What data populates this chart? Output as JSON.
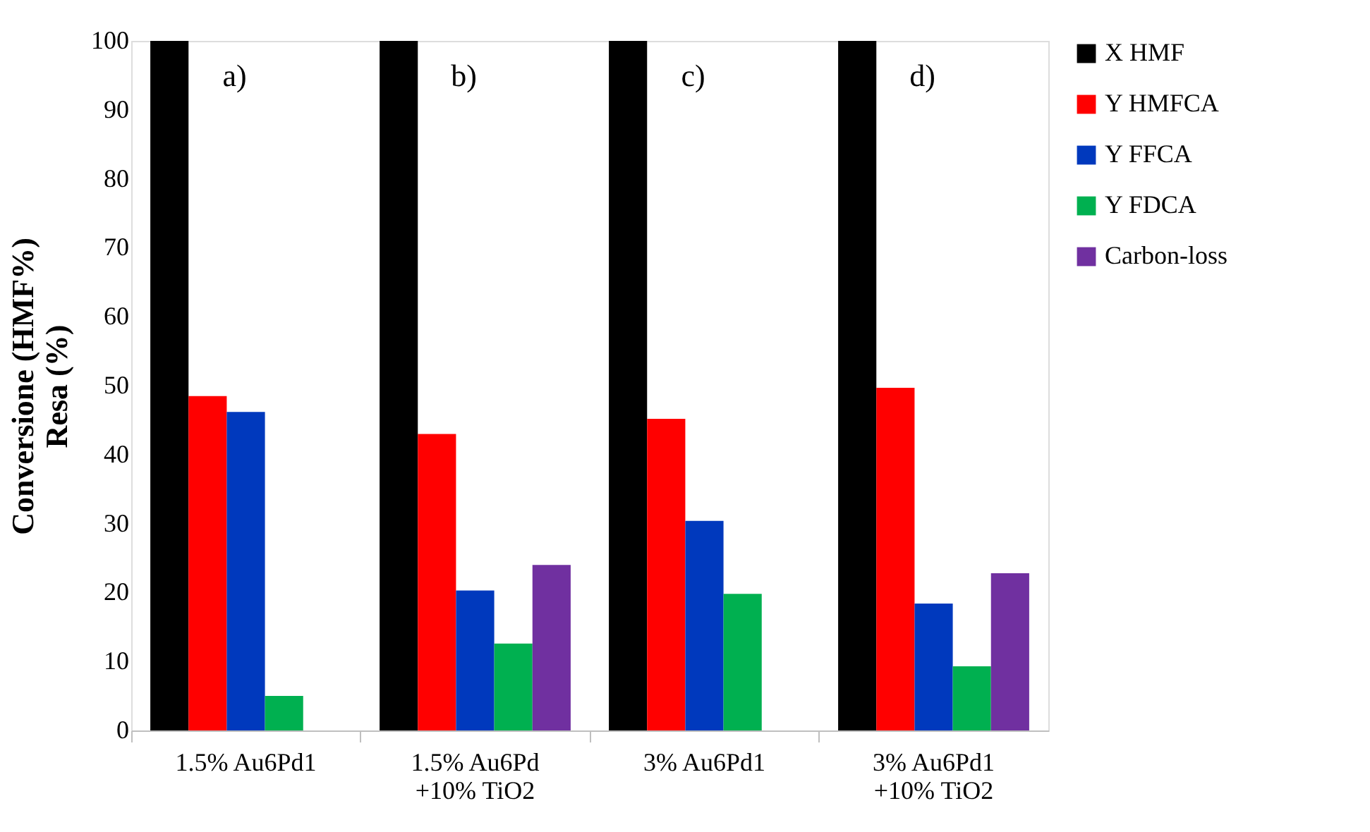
{
  "chart_data": {
    "type": "bar",
    "ylabel": "Conversione (HMF%)\nResa (%)",
    "categories": [
      "1.5%  Au6Pd1",
      "1.5% Au6Pd\n+10% TiO2",
      "3%  Au6Pd1",
      "3% Au6Pd1\n+10% TiO2"
    ],
    "series": [
      {
        "name": "X HMF",
        "color": "#000000",
        "values": [
          100,
          100,
          100,
          100
        ]
      },
      {
        "name": "Y HMFCA",
        "color": "#ff0000",
        "values": [
          48.5,
          43,
          45.2,
          49.7
        ]
      },
      {
        "name": "Y FFCA",
        "color": "#0039bd",
        "values": [
          46.2,
          20.3,
          30.4,
          18.4
        ]
      },
      {
        "name": "Y FDCA",
        "color": "#00b050",
        "values": [
          5,
          12.6,
          19.8,
          9.3
        ]
      },
      {
        "name": "Carbon-loss",
        "color": "#7030a0",
        "values": [
          null,
          24,
          null,
          22.8
        ]
      }
    ],
    "ylim": [
      0,
      100
    ],
    "yticks": [
      0,
      10,
      20,
      30,
      40,
      50,
      60,
      70,
      80,
      90,
      100
    ],
    "grid": false,
    "legend": "right",
    "annotations": [
      "a)",
      "b)",
      "c)",
      "d)"
    ]
  }
}
